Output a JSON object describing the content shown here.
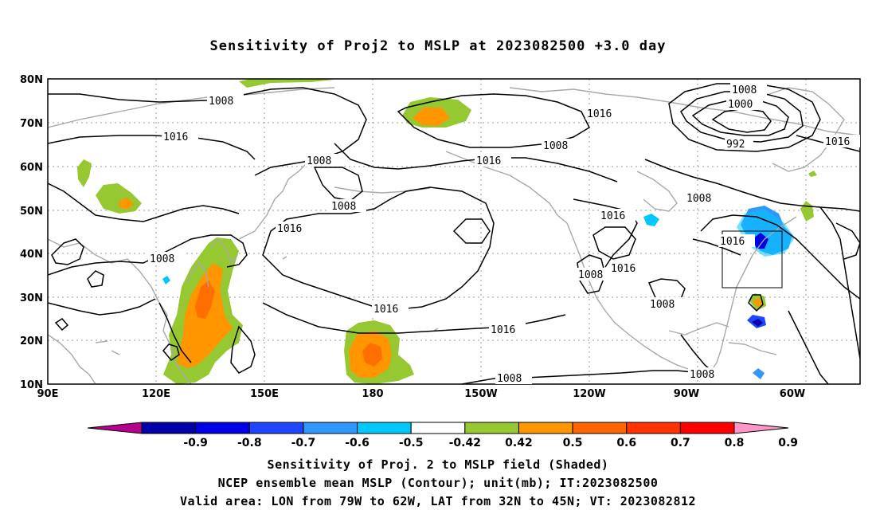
{
  "title": "Sensitivity of Proj2 to MSLP at 2023082500 +3.0 day",
  "axes": {
    "lat_labels": [
      "80N",
      "70N",
      "60N",
      "50N",
      "40N",
      "30N",
      "20N",
      "10N"
    ],
    "lon_labels": [
      "90E",
      "120E",
      "150E",
      "180",
      "150W",
      "120W",
      "90W",
      "60W"
    ]
  },
  "contours": {
    "labels": [
      "1008",
      "1016",
      "1008",
      "1016",
      "1008",
      "1016",
      "1008",
      "1008",
      "1000",
      "992",
      "1016",
      "1008",
      "1016",
      "1016",
      "1016",
      "1008",
      "1008",
      "1016",
      "1016",
      "1016",
      "1008",
      "1008",
      "1008",
      "1016"
    ]
  },
  "colorbar": {
    "labels": [
      "-0.9",
      "-0.8",
      "-0.7",
      "-0.6",
      "-0.5",
      "-0.42",
      "0.42",
      "0.5",
      "0.6",
      "0.7",
      "0.8",
      "0.9"
    ],
    "colors": [
      "#b4008c",
      "#0000aa",
      "#0000e6",
      "#1e46ff",
      "#3296ff",
      "#00c8ff",
      "#ffffff",
      "#96c832",
      "#ff9600",
      "#ff6400",
      "#ff3200",
      "#ff0000",
      "#ff96c8"
    ]
  },
  "footer": {
    "line1": "Sensitivity of Proj. 2 to MSLP field (Shaded)",
    "line2": "NCEP ensemble mean MSLP (Contour); unit(mb); IT:2023082500",
    "line3": "Valid area: LON from 79W to 62W, LAT from 32N to 45N; VT: 2023082812"
  }
}
